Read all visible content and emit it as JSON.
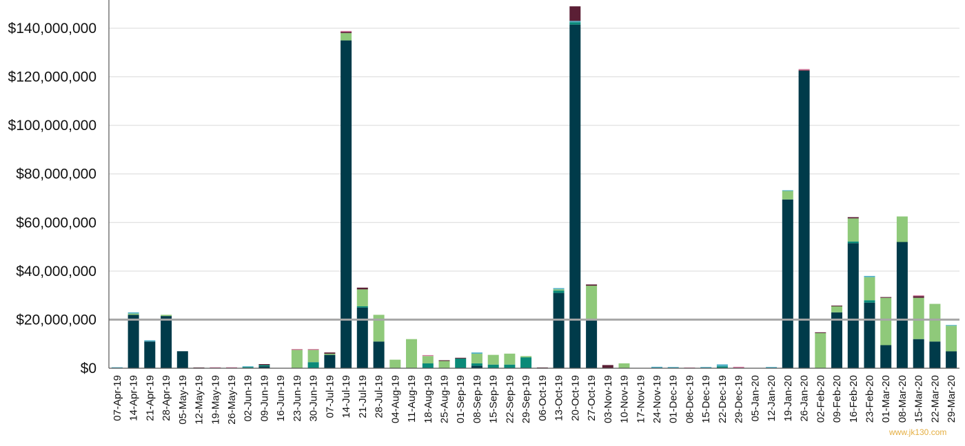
{
  "chart_data": {
    "type": "bar",
    "stacked": true,
    "title": "",
    "xlabel": "",
    "ylabel": "",
    "ylim": [
      0,
      150000000
    ],
    "yticks": [
      0,
      20000000,
      40000000,
      60000000,
      80000000,
      100000000,
      120000000,
      140000000
    ],
    "ytick_labels": [
      "$0",
      "$20,000,000",
      "$40,000,000",
      "$60,000,000",
      "$80,000,000",
      "$100,000,000",
      "$120,000,000",
      "$140,000,000"
    ],
    "grid": true,
    "legend": "none",
    "reference_line": {
      "value": 20000000,
      "color": "#a6a6a6"
    },
    "series_colors": [
      "#003b4a",
      "#0a8a78",
      "#8fc97a",
      "#4fb0c6",
      "#5b1f35",
      "#d47aa0"
    ],
    "categories": [
      "07-Apr-19",
      "14-Apr-19",
      "21-Apr-19",
      "28-Apr-19",
      "05-May-19",
      "12-May-19",
      "19-May-19",
      "26-May-19",
      "02-Jun-19",
      "09-Jun-19",
      "16-Jun-19",
      "23-Jun-19",
      "30-Jun-19",
      "07-Jul-19",
      "14-Jul-19",
      "21-Jul-19",
      "28-Jul-19",
      "04-Aug-19",
      "11-Aug-19",
      "18-Aug-19",
      "25-Aug-19",
      "01-Sep-19",
      "08-Sep-19",
      "15-Sep-19",
      "22-Sep-19",
      "29-Sep-19",
      "06-Oct-19",
      "13-Oct-19",
      "20-Oct-19",
      "27-Oct-19",
      "03-Nov-19",
      "10-Nov-19",
      "17-Nov-19",
      "24-Nov-19",
      "01-Dec-19",
      "08-Dec-19",
      "15-Dec-19",
      "22-Dec-19",
      "29-Dec-19",
      "05-Jan-20",
      "12-Jan-20",
      "19-Jan-20",
      "26-Jan-20",
      "02-Feb-20",
      "09-Feb-20",
      "16-Feb-20",
      "23-Feb-20",
      "01-Mar-20",
      "08-Mar-20",
      "15-Mar-20",
      "22-Mar-20",
      "29-Mar-20"
    ],
    "series": [
      {
        "values": [
          0,
          22000000,
          11000000,
          21500000,
          7000000,
          0,
          0,
          0,
          0,
          800000,
          0,
          0,
          0,
          5500000,
          135000000,
          25000000,
          11000000,
          0,
          0,
          0,
          0,
          0,
          1000000,
          0,
          0,
          0,
          0,
          31000000,
          141500000,
          20000000,
          0,
          0,
          0,
          0,
          0,
          0,
          0,
          0,
          0,
          0,
          0,
          69500000,
          122500000,
          0,
          23000000,
          51500000,
          27000000,
          9500000,
          52000000,
          12000000,
          11000000,
          7000000
        ]
      },
      {
        "values": [
          0,
          0,
          0,
          0,
          0,
          0,
          0,
          0,
          500000,
          500000,
          0,
          0,
          2500000,
          0,
          0,
          500000,
          0,
          0,
          0,
          2000000,
          0,
          4000000,
          1000000,
          1500000,
          1500000,
          4500000,
          0,
          1000000,
          1000000,
          0,
          0,
          0,
          0,
          0,
          0,
          0,
          0,
          800000,
          0,
          0,
          0,
          0,
          0,
          0,
          0,
          700000,
          1000000,
          0,
          0,
          0,
          0,
          0
        ]
      },
      {
        "values": [
          0,
          500000,
          0,
          500000,
          0,
          0,
          0,
          0,
          0,
          0,
          0,
          7500000,
          5000000,
          500000,
          3000000,
          7000000,
          11000000,
          3500000,
          12000000,
          3000000,
          3000000,
          0,
          4000000,
          4000000,
          4500000,
          500000,
          0,
          500000,
          0,
          14000000,
          0,
          2000000,
          0,
          0,
          0,
          0,
          0,
          0,
          0,
          0,
          0,
          3500000,
          0,
          14500000,
          2500000,
          9500000,
          9500000,
          19500000,
          10500000,
          17000000,
          15500000,
          10500000
        ]
      },
      {
        "values": [
          400000,
          500000,
          500000,
          0,
          0,
          0,
          0,
          0,
          300000,
          0,
          0,
          0,
          0,
          0,
          0,
          0,
          0,
          0,
          0,
          0,
          0,
          0,
          500000,
          0,
          0,
          0,
          0,
          500000,
          500000,
          0,
          0,
          0,
          0,
          600000,
          500000,
          0,
          500000,
          800000,
          0,
          0,
          500000,
          300000,
          0,
          0,
          0,
          0,
          500000,
          0,
          0,
          0,
          0,
          300000
        ]
      },
      {
        "values": [
          0,
          0,
          0,
          0,
          0,
          300000,
          0,
          0,
          0,
          400000,
          0,
          0,
          0,
          500000,
          500000,
          700000,
          0,
          0,
          0,
          0,
          300000,
          300000,
          0,
          0,
          0,
          0,
          300000,
          0,
          6000000,
          500000,
          1300000,
          0,
          0,
          0,
          0,
          0,
          0,
          0,
          0,
          0,
          0,
          0,
          300000,
          300000,
          300000,
          500000,
          0,
          300000,
          0,
          700000,
          0,
          0
        ]
      },
      {
        "values": [
          0,
          0,
          0,
          0,
          0,
          0,
          400000,
          400000,
          0,
          0,
          0,
          400000,
          400000,
          0,
          400000,
          0,
          0,
          0,
          0,
          400000,
          0,
          0,
          0,
          0,
          0,
          0,
          0,
          0,
          0,
          0,
          0,
          0,
          0,
          0,
          0,
          300000,
          0,
          0,
          600000,
          0,
          0,
          0,
          400000,
          0,
          0,
          0,
          0,
          0,
          0,
          300000,
          0,
          0
        ]
      }
    ]
  },
  "watermark": "www.jk130.com"
}
